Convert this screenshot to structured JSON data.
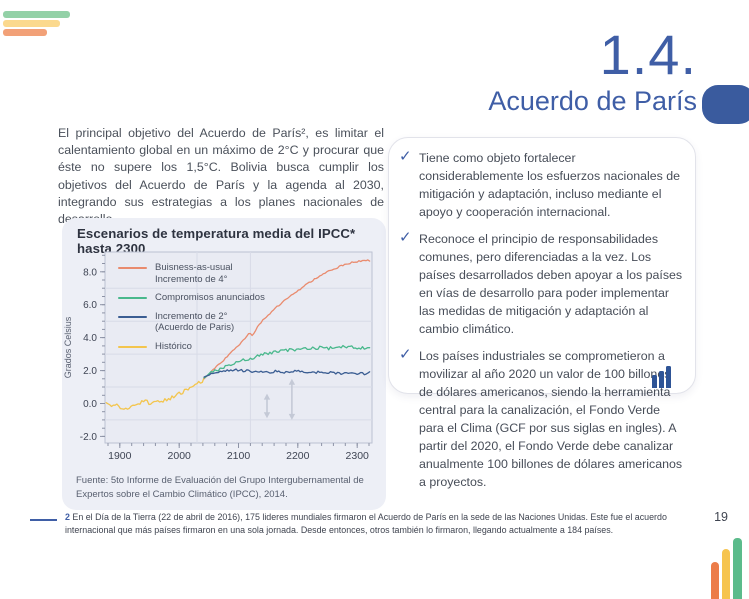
{
  "header": {
    "section_number": "1.4.",
    "title": "Acuerdo de París"
  },
  "decorative": {
    "top_left_bar_colors": [
      "#93d1a7",
      "#fbd98e",
      "#f2a178"
    ],
    "bottom_right_bar_colors": [
      "#ec7c48",
      "#f6c44e",
      "#5bbb8b"
    ],
    "accent_pill_color": "#3a5b9e",
    "bar_icon_color": "#2e5496"
  },
  "intro": {
    "text": "El principal objetivo del Acuerdo de París², es limitar el calentamiento global en un máximo de 2°C y procurar que éste no supere los 1,5°C. Bolivia busca cumplir los objetivos del Acuerdo de París y la agenda al 2030, integrando sus estrategias a los planes nacionales de desarrollo."
  },
  "chart_card": {
    "title": "Escenarios de temperatura media del IPCC* hasta 2300",
    "source": "Fuente: 5to Informe de Evaluación del Grupo Intergubernamental de Expertos sobre el Cambio Climático (IPCC), 2014."
  },
  "chart_data": {
    "type": "line",
    "title": "Escenarios de temperatura media del IPCC* hasta 2300",
    "xlabel": "",
    "ylabel": "Grados Celsius",
    "xlim": [
      1875,
      2325
    ],
    "ylim": [
      -2.4,
      9.2
    ],
    "xticks": [
      1900,
      2000,
      2100,
      2200,
      2300
    ],
    "yticks": [
      8.0,
      6.0,
      4.0,
      2.0,
      0.0,
      -2.0
    ],
    "minor_x_step": 20,
    "minor_y_step": 0.5,
    "grid": {
      "h_lines": [
        7,
        5,
        3,
        1,
        -1
      ],
      "v_lines": [
        2030,
        2120
      ]
    },
    "legend_position": "top-left",
    "plot_bg": "#e9ebf3",
    "border_color": "#bcc2d2",
    "grid_color": "#d8dbe7",
    "tick_color": "#8d93a6",
    "label_color": "#3f4554",
    "series": [
      {
        "name": "Business-as-usual (Incremento de 4°)",
        "label": "Buisness-as-usual\nIncremento de 4°",
        "color": "#e98b6e",
        "noise": 0.05,
        "z": 1,
        "points": [
          [
            2042,
            1.5
          ],
          [
            2052,
            1.85
          ],
          [
            2062,
            2.2
          ],
          [
            2072,
            2.55
          ],
          [
            2082,
            2.9
          ],
          [
            2092,
            3.25
          ],
          [
            2102,
            3.6
          ],
          [
            2112,
            3.95
          ],
          [
            2118,
            4.3
          ],
          [
            2124,
            4.1
          ],
          [
            2130,
            4.55
          ],
          [
            2140,
            5.0
          ],
          [
            2152,
            5.45
          ],
          [
            2164,
            5.85
          ],
          [
            2176,
            6.2
          ],
          [
            2188,
            6.55
          ],
          [
            2200,
            6.85
          ],
          [
            2212,
            7.15
          ],
          [
            2224,
            7.45
          ],
          [
            2236,
            7.7
          ],
          [
            2248,
            7.95
          ],
          [
            2260,
            8.15
          ],
          [
            2272,
            8.35
          ],
          [
            2284,
            8.5
          ],
          [
            2296,
            8.6
          ],
          [
            2308,
            8.65
          ],
          [
            2322,
            8.7
          ]
        ]
      },
      {
        "name": "Compromisos anunciados",
        "label": "Compromisos anunciados",
        "color": "#49b88c",
        "noise": 0.1,
        "z": 2,
        "points": [
          [
            2042,
            1.55
          ],
          [
            2054,
            1.85
          ],
          [
            2066,
            2.05
          ],
          [
            2078,
            2.25
          ],
          [
            2090,
            2.45
          ],
          [
            2102,
            2.6
          ],
          [
            2114,
            2.7
          ],
          [
            2126,
            2.75
          ],
          [
            2134,
            2.95
          ],
          [
            2146,
            3.05
          ],
          [
            2158,
            3.1
          ],
          [
            2170,
            3.2
          ],
          [
            2182,
            3.25
          ],
          [
            2194,
            3.25
          ],
          [
            2206,
            3.3
          ],
          [
            2218,
            3.35
          ],
          [
            2230,
            3.35
          ],
          [
            2242,
            3.4
          ],
          [
            2254,
            3.35
          ],
          [
            2266,
            3.4
          ],
          [
            2278,
            3.45
          ],
          [
            2290,
            3.4
          ],
          [
            2302,
            3.4
          ],
          [
            2322,
            3.4
          ]
        ]
      },
      {
        "name": "Incremento de 2° (Acuerdo de París)",
        "label": "Incremento de 2°\n(Acuerdo de Paris)",
        "color": "#3a5d92",
        "noise": 0.07,
        "z": 3,
        "points": [
          [
            2042,
            1.6
          ],
          [
            2052,
            1.75
          ],
          [
            2062,
            1.9
          ],
          [
            2072,
            1.98
          ],
          [
            2082,
            2.02
          ],
          [
            2092,
            2.05
          ],
          [
            2102,
            2.0
          ],
          [
            2112,
            1.98
          ],
          [
            2122,
            1.95
          ],
          [
            2132,
            1.92
          ],
          [
            2142,
            1.95
          ],
          [
            2152,
            1.9
          ],
          [
            2162,
            1.95
          ],
          [
            2172,
            1.9
          ],
          [
            2182,
            1.88
          ],
          [
            2192,
            1.95
          ],
          [
            2202,
            2.0
          ],
          [
            2212,
            1.88
          ],
          [
            2222,
            1.85
          ],
          [
            2232,
            1.9
          ],
          [
            2242,
            1.85
          ],
          [
            2252,
            1.88
          ],
          [
            2262,
            1.85
          ],
          [
            2272,
            1.82
          ],
          [
            2282,
            1.85
          ],
          [
            2292,
            1.8
          ],
          [
            2302,
            1.82
          ],
          [
            2312,
            1.8
          ],
          [
            2322,
            1.88
          ]
        ]
      },
      {
        "name": "Histórico",
        "label": "Histórico",
        "color": "#f3c54d",
        "noise": 0.13,
        "z": 0,
        "points": [
          [
            1877,
            0.05
          ],
          [
            1884,
            -0.05
          ],
          [
            1893,
            -0.12
          ],
          [
            1904,
            -0.22
          ],
          [
            1913,
            -0.25
          ],
          [
            1921,
            -0.1
          ],
          [
            1931,
            0.0
          ],
          [
            1941,
            0.15
          ],
          [
            1948,
            0.05
          ],
          [
            1956,
            0.05
          ],
          [
            1964,
            0.1
          ],
          [
            1972,
            0.1
          ],
          [
            1980,
            0.28
          ],
          [
            1990,
            0.42
          ],
          [
            2000,
            0.58
          ],
          [
            2010,
            0.78
          ],
          [
            2020,
            1.0
          ],
          [
            2032,
            1.25
          ],
          [
            2044,
            1.52
          ]
        ]
      }
    ],
    "annotations": {
      "double_arrows": [
        {
          "x": 2148,
          "y1": -0.9,
          "y2": 0.6
        },
        {
          "x": 2190,
          "y1": -1.0,
          "y2": 1.5
        }
      ],
      "color": "#c4c9d6"
    }
  },
  "key_points": {
    "check_icon": "✓",
    "items": [
      {
        "text": "Tiene como objeto fortalecer considerablemente los esfuerzos nacionales de mitigación y adaptación, incluso mediante el apoyo y cooperación internacional."
      },
      {
        "text": "Reconoce el principio de responsabilidades comunes, pero diferenciadas a la vez. Los países desarrollados deben apoyar a los países en vías de desarrollo para poder implementar las medidas de mitigación y adaptación al cambio climático."
      },
      {
        "text": "Los países industriales se comprometieron a movilizar al año 2020 un valor de 100 billones de dólares americanos, siendo la herramienta central para la canalización, el Fondo Verde para el Clima (GCF por sus siglas en ingles). A partir del 2020, el Fondo Verde debe canalizar anualmente 100 billones de dólares americanos a proyectos."
      }
    ]
  },
  "footnote": {
    "marker": "2",
    "text": " En el Día de la Tierra (22 de abril de 2016), 175 lideres mundiales firmaron el Acuerdo de París en la sede de las Naciones Unidas. Este fue el acuerdo internacional que más países firmaron en una sola jornada. Desde entonces, otros también lo firmaron, llegando actualmente a 184 países."
  },
  "page_number": "19"
}
